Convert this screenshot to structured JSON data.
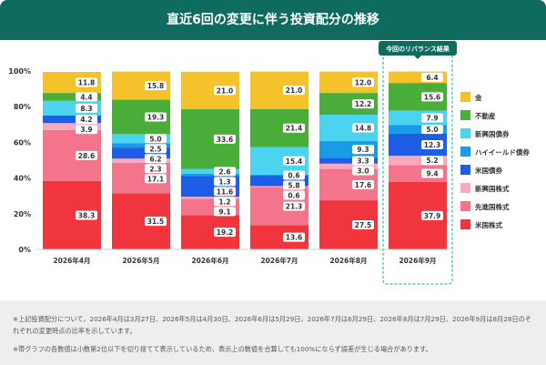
{
  "header": {
    "title": "直近6回の変更に伴う投資配分の推移"
  },
  "chart_data": {
    "type": "bar",
    "stacked": true,
    "categories": [
      "2026年4月",
      "2026年5月",
      "2026年6月",
      "2026年7月",
      "2026年8月",
      "2026年9月"
    ],
    "y_ticks": [
      "0%",
      "20%",
      "40%",
      "60%",
      "80%",
      "100%"
    ],
    "ylim": [
      0,
      100
    ],
    "series": [
      {
        "name": "米国株式",
        "color": "#f0353e",
        "values": [
          38.3,
          31.5,
          19.2,
          13.6,
          27.5,
          37.9
        ]
      },
      {
        "name": "先進国株式",
        "color": "#f4748b",
        "values": [
          28.6,
          17.1,
          9.1,
          21.3,
          17.6,
          9.4
        ]
      },
      {
        "name": "新興国株式",
        "color": "#f8a9c0",
        "values": [
          3.9,
          2.3,
          1.2,
          0.6,
          3.0,
          5.2
        ]
      },
      {
        "name": "米国債券",
        "color": "#1e5ee6",
        "values": [
          4.2,
          6.2,
          11.6,
          5.8,
          3.3,
          12.3
        ]
      },
      {
        "name": "ハイイールド債券",
        "color": "#1a9be8",
        "values": [
          0,
          2.5,
          1.3,
          0.6,
          9.3,
          5.0
        ]
      },
      {
        "name": "新興国債券",
        "color": "#4cd3ef",
        "values": [
          8.3,
          5.0,
          2.6,
          15.4,
          14.8,
          7.9
        ]
      },
      {
        "name": "不動産",
        "color": "#4aad3a",
        "values": [
          4.4,
          19.3,
          33.6,
          21.4,
          12.2,
          15.6
        ]
      },
      {
        "name": "金",
        "color": "#f6c22c",
        "values": [
          11.8,
          15.8,
          21.0,
          21.0,
          12.0,
          6.4
        ]
      }
    ],
    "callout": {
      "label": "今回のリバランス結果",
      "category_index": 5
    },
    "legend_placement": "right",
    "grid": false
  },
  "notes": [
    "※上記投資配分について、2026年4月は3月27日、2026年5月は4月30日、2026年6月は5月29日、2026年7月は6月29日、2026年8月は7月29日、2026年9月は8月28日のそれぞれの変更時点の比率を示しています。",
    "※帯グラフの各数値は小数第2位以下を切り捨てて表示しているため、表示上の数値を合算しても100%にならず誤差が生じる場合があります。"
  ]
}
